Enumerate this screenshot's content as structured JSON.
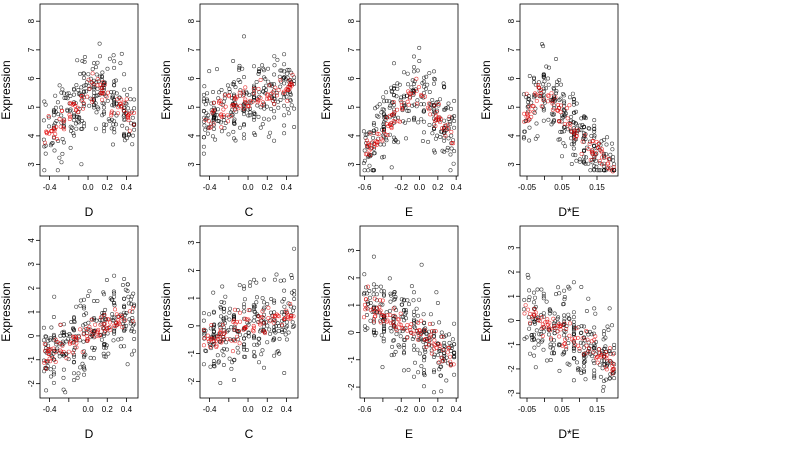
{
  "chart_data": [
    {
      "type": "scatter",
      "xlabel": "D",
      "ylabel": "Expression",
      "xlim": [
        -0.5,
        0.52
      ],
      "ylim": [
        2.6,
        8.6
      ],
      "xticks": [
        -0.4,
        -0.2,
        0.0,
        0.2,
        0.4
      ],
      "xtick_labels": [
        "-0.4",
        "",
        "0.0",
        "0.2",
        "0.4"
      ],
      "yticks": [
        3,
        4,
        5,
        6,
        7,
        8
      ],
      "ytick_labels": [
        "3",
        "4",
        "5",
        "6",
        "7",
        "8"
      ],
      "trend": {
        "kind": "peak",
        "peak_x": 0.1,
        "peak_y": 5.7,
        "drop_per_unit": 3.2
      },
      "series": [
        {
          "name": "",
          "color": "#000000",
          "x": [],
          "y": []
        },
        {
          "name": "",
          "color": "#e00000",
          "x": [],
          "y": []
        }
      ]
    },
    {
      "type": "scatter",
      "xlabel": "C",
      "ylabel": "Expression",
      "xlim": [
        -0.5,
        0.52
      ],
      "ylim": [
        2.6,
        8.6
      ],
      "xticks": [
        -0.4,
        -0.2,
        0.0,
        0.2,
        0.4
      ],
      "xtick_labels": [
        "-0.4",
        "",
        "0.0",
        "0.2",
        "0.4"
      ],
      "yticks": [
        3,
        4,
        5,
        6,
        7,
        8
      ],
      "ytick_labels": [
        "3",
        "4",
        "5",
        "6",
        "7",
        "8"
      ],
      "trend": {
        "kind": "log",
        "x0": -0.5,
        "y0": 4.2,
        "x1": 0.5,
        "y1": 5.7
      },
      "series": [
        {
          "name": "",
          "color": "#000000",
          "x": [],
          "y": []
        },
        {
          "name": "",
          "color": "#e00000",
          "x": [],
          "y": []
        }
      ]
    },
    {
      "type": "scatter",
      "xlabel": "E",
      "ylabel": "Expression",
      "xlim": [
        -0.65,
        0.42
      ],
      "ylim": [
        2.6,
        8.6
      ],
      "xticks": [
        -0.6,
        -0.4,
        -0.2,
        0.0,
        0.2,
        0.4
      ],
      "xtick_labels": [
        "-0.6",
        "",
        "-0.2",
        "0.0",
        "0.2",
        "0.4"
      ],
      "yticks": [
        3,
        4,
        5,
        6,
        7,
        8
      ],
      "ytick_labels": [
        "3",
        "4",
        "5",
        "6",
        "7",
        "8"
      ],
      "trend": {
        "kind": "peak",
        "peak_x": -0.05,
        "peak_y": 5.6,
        "drop_per_unit": 4.0
      },
      "series": [
        {
          "name": "",
          "color": "#000000",
          "x": [],
          "y": []
        },
        {
          "name": "",
          "color": "#e00000",
          "x": [],
          "y": []
        }
      ]
    },
    {
      "type": "scatter",
      "xlabel": "D*E",
      "ylabel": "Expression",
      "xlim": [
        -0.07,
        0.21
      ],
      "ylim": [
        2.6,
        8.6
      ],
      "xticks": [
        -0.05,
        0.0,
        0.05,
        0.1,
        0.15
      ],
      "xtick_labels": [
        "-0.05",
        "",
        "0.05",
        "",
        "0.15"
      ],
      "yticks": [
        3,
        4,
        5,
        6,
        7,
        8
      ],
      "ytick_labels": [
        "3",
        "4",
        "5",
        "6",
        "7",
        "8"
      ],
      "trend": {
        "kind": "peak",
        "peak_x": 0.0,
        "peak_y": 5.5,
        "drop_per_unit": 14.0
      },
      "series": [
        {
          "name": "",
          "color": "#000000",
          "x": [],
          "y": []
        },
        {
          "name": "",
          "color": "#e00000",
          "x": [],
          "y": []
        }
      ]
    },
    {
      "type": "scatter",
      "xlabel": "D",
      "ylabel": "Expression",
      "xlim": [
        -0.5,
        0.52
      ],
      "ylim": [
        -2.6,
        4.6
      ],
      "xticks": [
        -0.4,
        -0.2,
        0.0,
        0.2,
        0.4
      ],
      "xtick_labels": [
        "-0.4",
        "",
        "0.0",
        "0.2",
        "0.4"
      ],
      "yticks": [
        -2,
        -1,
        0,
        1,
        2,
        3,
        4
      ],
      "ytick_labels": [
        "-2",
        "-1",
        "0",
        "1",
        "2",
        "3",
        "4"
      ],
      "trend": {
        "kind": "linear",
        "x0": -0.5,
        "y0": -0.95,
        "x1": 0.5,
        "y1": 1.0
      },
      "series": [
        {
          "name": "",
          "color": "#000000",
          "x": [],
          "y": []
        },
        {
          "name": "",
          "color": "#e00000",
          "x": [],
          "y": []
        }
      ]
    },
    {
      "type": "scatter",
      "xlabel": "C",
      "ylabel": "Expression",
      "xlim": [
        -0.5,
        0.52
      ],
      "ylim": [
        -2.6,
        3.6
      ],
      "xticks": [
        -0.4,
        -0.2,
        0.0,
        0.2,
        0.4
      ],
      "xtick_labels": [
        "-0.4",
        "",
        "0.0",
        "0.2",
        "0.4"
      ],
      "yticks": [
        -2,
        -1,
        0,
        1,
        2,
        3
      ],
      "ytick_labels": [
        "-2",
        "-1",
        "0",
        "1",
        "2",
        "3"
      ],
      "trend": {
        "kind": "linear",
        "x0": -0.5,
        "y0": -0.6,
        "x1": 0.5,
        "y1": 0.55
      },
      "series": [
        {
          "name": "",
          "color": "#000000",
          "x": [],
          "y": []
        },
        {
          "name": "",
          "color": "#e00000",
          "x": [],
          "y": []
        }
      ]
    },
    {
      "type": "scatter",
      "xlabel": "E",
      "ylabel": "Expression",
      "xlim": [
        -0.65,
        0.42
      ],
      "ylim": [
        -2.4,
        3.9
      ],
      "xticks": [
        -0.6,
        -0.4,
        -0.2,
        0.0,
        0.2,
        0.4
      ],
      "xtick_labels": [
        "-0.6",
        "",
        "-0.2",
        "0.0",
        "0.2",
        "0.4"
      ],
      "yticks": [
        -2,
        -1,
        0,
        1,
        2,
        3
      ],
      "ytick_labels": [
        "-2",
        "-1",
        "0",
        "1",
        "2",
        "3"
      ],
      "trend": {
        "kind": "linear",
        "x0": -0.6,
        "y0": 1.1,
        "x1": 0.35,
        "y1": -0.8
      },
      "series": [
        {
          "name": "",
          "color": "#000000",
          "x": [],
          "y": []
        },
        {
          "name": "",
          "color": "#e00000",
          "x": [],
          "y": []
        }
      ]
    },
    {
      "type": "scatter",
      "xlabel": "D*E",
      "ylabel": "Expression",
      "xlim": [
        -0.07,
        0.21
      ],
      "ylim": [
        -3.2,
        3.9
      ],
      "xticks": [
        -0.05,
        0.0,
        0.05,
        0.1,
        0.15
      ],
      "xtick_labels": [
        "-0.05",
        "",
        "0.05",
        "",
        "0.15"
      ],
      "yticks": [
        -3,
        -2,
        -1,
        0,
        1,
        2,
        3
      ],
      "ytick_labels": [
        "-3",
        "-2",
        "-1",
        "0",
        "1",
        "2",
        "3"
      ],
      "trend": {
        "kind": "linear",
        "x0": -0.05,
        "y0": 0.35,
        "x1": 0.2,
        "y1": -1.75
      },
      "series": [
        {
          "name": "",
          "color": "#000000",
          "x": [],
          "y": []
        },
        {
          "name": "",
          "color": "#e00000",
          "x": [],
          "y": []
        }
      ]
    }
  ]
}
